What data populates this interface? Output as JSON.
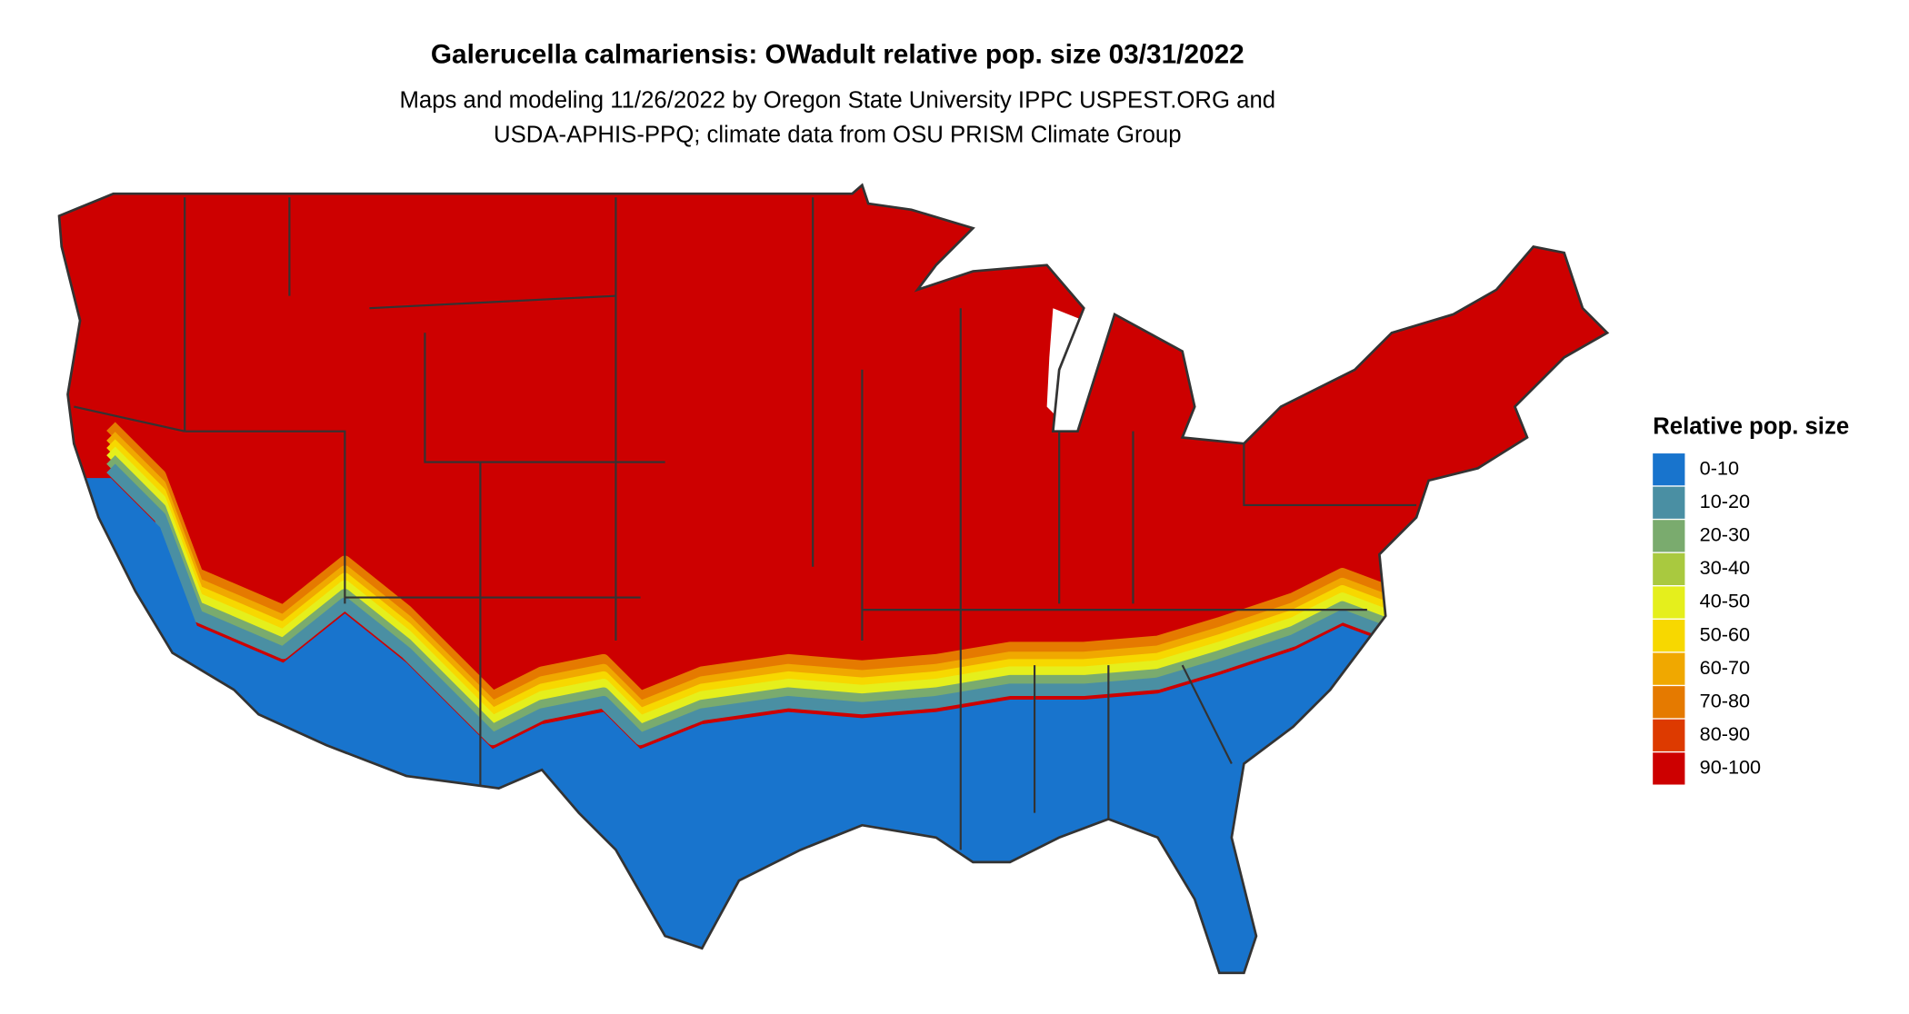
{
  "title": "Galerucella calmariensis: OWadult relative pop. size 03/31/2022",
  "subtitle": [
    "Maps and modeling 11/26/2022 by Oregon State University IPPC USPEST.ORG and",
    "USDA-APHIS-PPQ; climate data from OSU PRISM Climate Group"
  ],
  "legend": {
    "title": "Relative pop. size",
    "items": [
      {
        "label": "0-10",
        "color": "#1874cd"
      },
      {
        "label": "10-20",
        "color": "#4a8fa3"
      },
      {
        "label": "20-30",
        "color": "#7aab6e"
      },
      {
        "label": "30-40",
        "color": "#a9c93f"
      },
      {
        "label": "40-50",
        "color": "#e5ef1c"
      },
      {
        "label": "50-60",
        "color": "#f7d800"
      },
      {
        "label": "60-70",
        "color": "#f0a800"
      },
      {
        "label": "70-80",
        "color": "#e57a00"
      },
      {
        "label": "80-90",
        "color": "#dd3a00"
      },
      {
        "label": "90-100",
        "color": "#cd0000"
      }
    ]
  }
}
